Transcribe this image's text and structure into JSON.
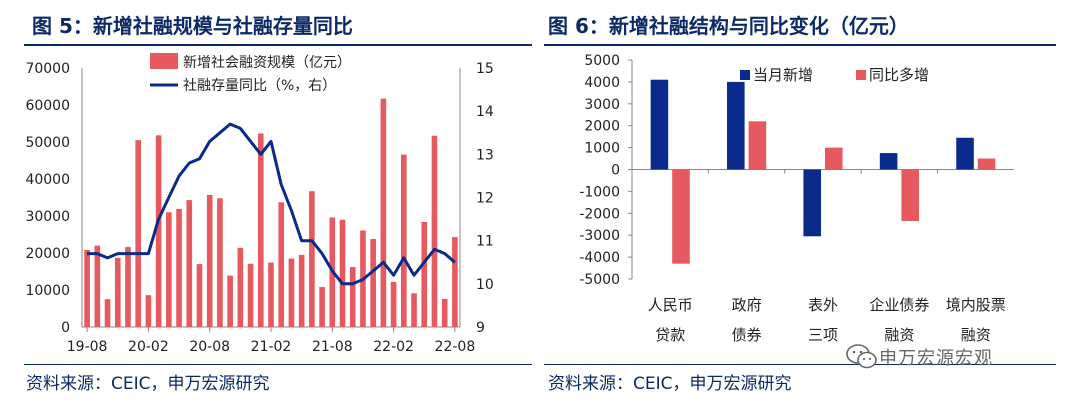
{
  "colors": {
    "navy": "#0b2a66",
    "bar_red": "#e5595f",
    "bar_blue": "#0a2a8c",
    "axis": "#888888"
  },
  "left": {
    "title": "图 5：新增社融规模与社融存量同比",
    "source": "资料来源：CEIC，申万宏源研究"
  },
  "right": {
    "title": "图 6：新增社融结构与同比变化（亿元）",
    "source": "资料来源：CEIC，申万宏源研究"
  },
  "watermark": {
    "text": "申万宏源宏观",
    "icon": "wechat-icon"
  },
  "chart_data": [
    {
      "type": "bar",
      "combo": "bar+line",
      "x_ticks": [
        "19-08",
        "20-02",
        "20-08",
        "21-02",
        "21-08",
        "22-02",
        "22-08"
      ],
      "x": [
        "19-08",
        "19-09",
        "19-10",
        "19-11",
        "19-12",
        "20-01",
        "20-02",
        "20-03",
        "20-04",
        "20-05",
        "20-06",
        "20-07",
        "20-08",
        "20-09",
        "20-10",
        "20-11",
        "20-12",
        "21-01",
        "21-02",
        "21-03",
        "21-04",
        "21-05",
        "21-06",
        "21-07",
        "21-08",
        "21-09",
        "21-10",
        "21-11",
        "21-12",
        "22-01",
        "22-02",
        "22-03",
        "22-04",
        "22-05",
        "22-06",
        "22-07",
        "22-08"
      ],
      "ylim_left": [
        0,
        70000
      ],
      "yticks_left": [
        0,
        10000,
        20000,
        30000,
        40000,
        50000,
        60000,
        70000
      ],
      "ylim_right": [
        9,
        15
      ],
      "yticks_right": [
        9,
        10,
        11,
        12,
        13,
        14,
        15
      ],
      "legend_position": "top",
      "series": [
        {
          "name": "新增社会融资规模（亿元）",
          "type": "bar",
          "axis": "left",
          "values": [
            20800,
            22000,
            7500,
            18700,
            21600,
            50500,
            8600,
            51800,
            31000,
            31900,
            34300,
            17000,
            35700,
            34800,
            13900,
            21400,
            17100,
            52300,
            17400,
            33700,
            18500,
            19500,
            36700,
            10800,
            29600,
            29000,
            16200,
            26100,
            23800,
            61700,
            12200,
            46600,
            9100,
            28400,
            51700,
            7600,
            24300
          ]
        },
        {
          "name": "社融存量同比（%，右）",
          "type": "line",
          "axis": "right",
          "values": [
            10.7,
            10.7,
            10.6,
            10.7,
            10.7,
            10.7,
            10.7,
            11.5,
            12.0,
            12.5,
            12.8,
            12.9,
            13.3,
            13.5,
            13.7,
            13.6,
            13.3,
            13.0,
            13.3,
            12.3,
            11.7,
            11.0,
            11.0,
            10.7,
            10.3,
            10.0,
            10.0,
            10.1,
            10.3,
            10.5,
            10.2,
            10.6,
            10.2,
            10.5,
            10.8,
            10.7,
            10.5
          ]
        }
      ]
    },
    {
      "type": "bar",
      "categories": [
        "人民币贷款",
        "政府债券",
        "表外三项",
        "企业债券融资",
        "境内股票融资"
      ],
      "category_lines": [
        [
          "人民币",
          "贷款"
        ],
        [
          "政府",
          "债券"
        ],
        [
          "表外",
          "三项"
        ],
        [
          "企业债券",
          "融资"
        ],
        [
          "境内股票",
          "融资"
        ]
      ],
      "ylim": [
        -5000,
        5000
      ],
      "yticks": [
        -5000,
        -4000,
        -3000,
        -2000,
        -1000,
        0,
        1000,
        2000,
        3000,
        4000,
        5000
      ],
      "legend_position": "top",
      "series": [
        {
          "name": "当月新增",
          "values": [
            4100,
            4000,
            -3050,
            750,
            1450
          ]
        },
        {
          "name": "同比多增",
          "values": [
            -4300,
            2200,
            1000,
            -2350,
            500
          ]
        }
      ]
    }
  ]
}
